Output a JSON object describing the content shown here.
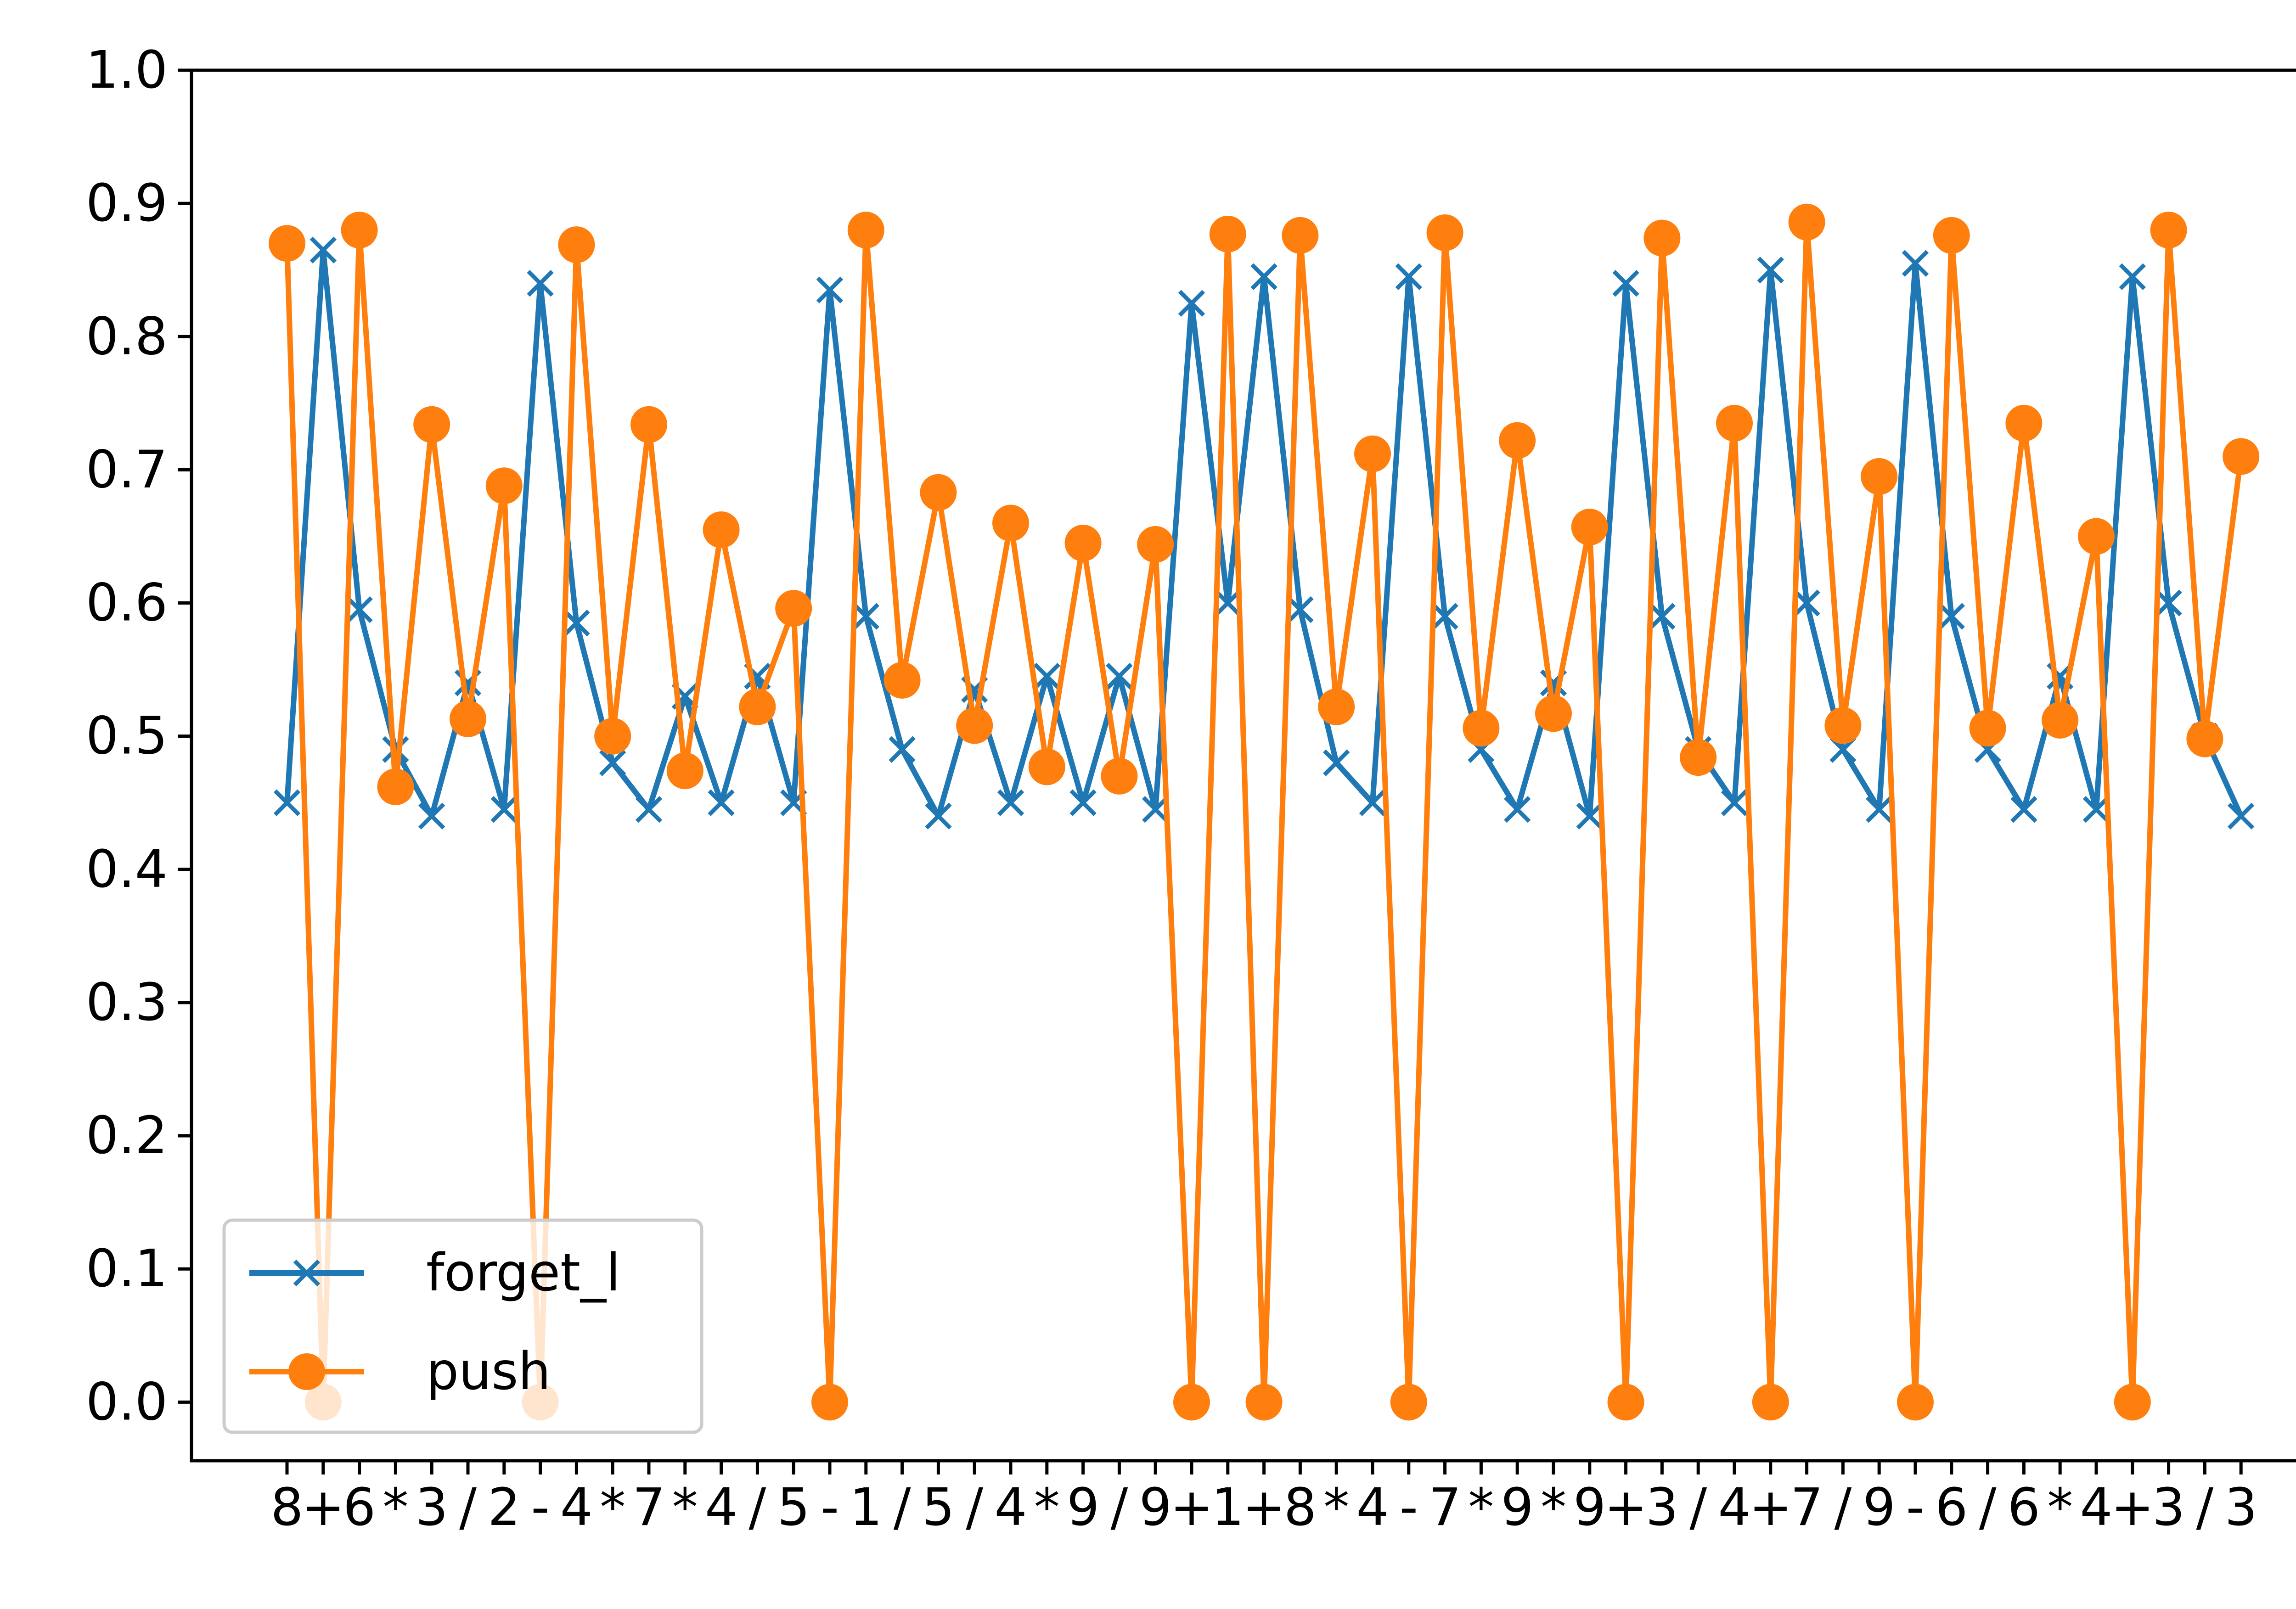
{
  "chart_data": {
    "type": "line",
    "x": [
      "8",
      "+",
      "6",
      "*",
      "3",
      "/",
      "2",
      "-",
      "4",
      "*",
      "7",
      "*",
      "4",
      "/",
      "5",
      "-",
      "1",
      "/",
      "5",
      "/",
      "4",
      "*",
      "9",
      "/",
      "9",
      "+",
      "1",
      "+",
      "8",
      "*",
      "4",
      "-",
      "7",
      "*",
      "9",
      "*",
      "9",
      "+",
      "3",
      "/",
      "4",
      "+",
      "7",
      "/",
      "9",
      "-",
      "6",
      "/",
      "6",
      "*",
      "4",
      "+",
      "3",
      "/",
      "3"
    ],
    "ylim": [
      -0.044,
      1.0
    ],
    "yticks": [
      0.0,
      0.1,
      0.2,
      0.3,
      0.4,
      0.5,
      0.6,
      0.7,
      0.8,
      0.9,
      1.0
    ],
    "ytick_labels": [
      "0.0",
      "0.1",
      "0.2",
      "0.3",
      "0.4",
      "0.5",
      "0.6",
      "0.7",
      "0.8",
      "0.9",
      "1.0"
    ],
    "legend_position": "lower-left",
    "grid": false,
    "series": [
      {
        "name": "forget_l",
        "color": "#1f77b4",
        "marker": "x",
        "values": [
          0.45,
          0.865,
          0.595,
          0.49,
          0.44,
          0.54,
          0.445,
          0.84,
          0.585,
          0.48,
          0.445,
          0.53,
          0.45,
          0.545,
          0.45,
          0.835,
          0.59,
          0.49,
          0.44,
          0.535,
          0.45,
          0.545,
          0.45,
          0.545,
          0.445,
          0.825,
          0.6,
          0.845,
          0.595,
          0.48,
          0.45,
          0.845,
          0.59,
          0.49,
          0.445,
          0.54,
          0.44,
          0.84,
          0.59,
          0.49,
          0.45,
          0.85,
          0.6,
          0.49,
          0.445,
          0.855,
          0.59,
          0.49,
          0.445,
          0.545,
          0.445,
          0.845,
          0.6,
          0.5,
          0.44
        ]
      },
      {
        "name": "push",
        "color": "#ff7f0e",
        "marker": "o",
        "values": [
          0.87,
          0.0,
          0.88,
          0.462,
          0.734,
          0.513,
          0.688,
          0.0,
          0.869,
          0.5,
          0.734,
          0.474,
          0.655,
          0.522,
          0.596,
          0.0,
          0.88,
          0.542,
          0.683,
          0.508,
          0.66,
          0.477,
          0.645,
          0.47,
          0.644,
          0.0,
          0.877,
          0.0,
          0.876,
          0.522,
          0.712,
          0.0,
          0.878,
          0.506,
          0.722,
          0.517,
          0.657,
          0.0,
          0.874,
          0.484,
          0.735,
          0.0,
          0.886,
          0.508,
          0.695,
          0.0,
          0.876,
          0.506,
          0.735,
          0.512,
          0.65,
          0.0,
          0.88,
          0.498,
          0.71
        ]
      }
    ]
  }
}
